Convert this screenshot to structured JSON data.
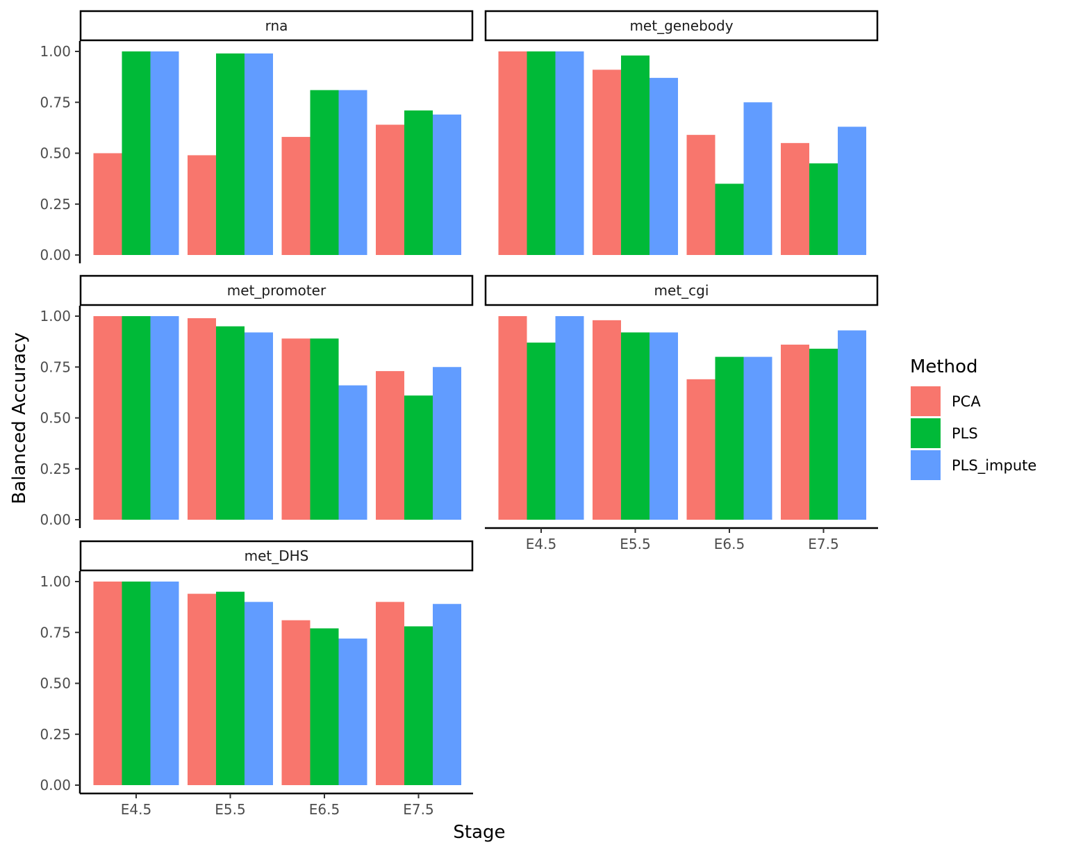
{
  "chart_data": {
    "type": "bar",
    "xlabel": "Stage",
    "ylabel": "Balanced Accuracy",
    "ylim": [
      0,
      1.05
    ],
    "yticks": [
      "0.00",
      "0.25",
      "0.50",
      "0.75",
      "1.00"
    ],
    "ytick_values": [
      0,
      0.25,
      0.5,
      0.75,
      1.0
    ],
    "categories": [
      "E4.5",
      "E5.5",
      "E6.5",
      "E7.5"
    ],
    "grid": false,
    "legend": {
      "title": "Method",
      "position": "right",
      "entries": [
        {
          "name": "PCA",
          "color": "#F8766D"
        },
        {
          "name": "PLS",
          "color": "#00BA38"
        },
        {
          "name": "PLS_impute",
          "color": "#619CFF"
        }
      ]
    },
    "panels": [
      {
        "title": "rna",
        "series": [
          {
            "name": "PCA",
            "values": [
              0.5,
              0.49,
              0.58,
              0.64
            ]
          },
          {
            "name": "PLS",
            "values": [
              1.0,
              0.99,
              0.81,
              0.71
            ]
          },
          {
            "name": "PLS_impute",
            "values": [
              1.0,
              0.99,
              0.81,
              0.69
            ]
          }
        ]
      },
      {
        "title": "met_genebody",
        "series": [
          {
            "name": "PCA",
            "values": [
              1.0,
              0.91,
              0.59,
              0.55
            ]
          },
          {
            "name": "PLS",
            "values": [
              1.0,
              0.98,
              0.35,
              0.45
            ]
          },
          {
            "name": "PLS_impute",
            "values": [
              1.0,
              0.87,
              0.75,
              0.63
            ]
          }
        ]
      },
      {
        "title": "met_promoter",
        "series": [
          {
            "name": "PCA",
            "values": [
              1.0,
              0.99,
              0.89,
              0.73
            ]
          },
          {
            "name": "PLS",
            "values": [
              1.0,
              0.95,
              0.89,
              0.61
            ]
          },
          {
            "name": "PLS_impute",
            "values": [
              1.0,
              0.92,
              0.66,
              0.75
            ]
          }
        ]
      },
      {
        "title": "met_cgi",
        "series": [
          {
            "name": "PCA",
            "values": [
              1.0,
              0.98,
              0.69,
              0.86
            ]
          },
          {
            "name": "PLS",
            "values": [
              0.87,
              0.92,
              0.8,
              0.84
            ]
          },
          {
            "name": "PLS_impute",
            "values": [
              1.0,
              0.92,
              0.8,
              0.93
            ]
          }
        ]
      },
      {
        "title": "met_DHS",
        "series": [
          {
            "name": "PCA",
            "values": [
              1.0,
              0.94,
              0.81,
              0.9
            ]
          },
          {
            "name": "PLS",
            "values": [
              1.0,
              0.95,
              0.77,
              0.78
            ]
          },
          {
            "name": "PLS_impute",
            "values": [
              1.0,
              0.9,
              0.72,
              0.89
            ]
          }
        ]
      }
    ]
  }
}
